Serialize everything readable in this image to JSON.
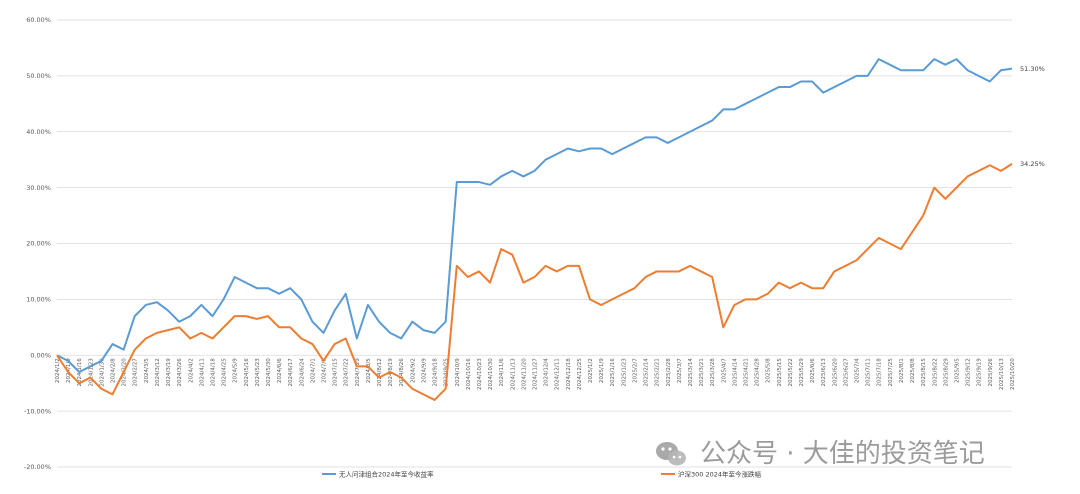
{
  "chart_data": {
    "type": "line",
    "title": "",
    "xlabel": "",
    "ylabel": "",
    "ylim": [
      -0.2,
      0.6
    ],
    "yticks": [
      "-20.00%",
      "-10.00%",
      "0.00%",
      "10.00%",
      "20.00%",
      "30.00%",
      "40.00%",
      "50.00%",
      "60.00%"
    ],
    "grid": true,
    "legend_position": "bottom",
    "x": [
      "2024/1/2",
      "2024/1/9",
      "2024/1/16",
      "2024/1/23",
      "2024/1/30",
      "2024/2/8",
      "2024/2/20",
      "2024/2/27",
      "2024/3/5",
      "2024/3/12",
      "2024/3/19",
      "2024/3/26",
      "2024/4/2",
      "2024/4/11",
      "2024/4/18",
      "2024/4/25",
      "2024/5/9",
      "2024/5/16",
      "2024/5/23",
      "2024/5/30",
      "2024/6/6",
      "2024/6/17",
      "2024/6/24",
      "2024/7/1",
      "2024/7/8",
      "2024/7/15",
      "2024/7/22",
      "2024/7/29",
      "2024/8/5",
      "2024/8/12",
      "2024/8/19",
      "2024/8/26",
      "2024/9/2",
      "2024/9/9",
      "2024/9/18",
      "2024/9/25",
      "2024/10/9",
      "2024/10/16",
      "2024/10/23",
      "2024/10/30",
      "2024/11/6",
      "2024/11/13",
      "2024/11/20",
      "2024/11/27",
      "2024/12/4",
      "2024/12/11",
      "2024/12/18",
      "2024/12/25",
      "2025/1/2",
      "2025/1/9",
      "2025/1/16",
      "2025/1/23",
      "2025/2/7",
      "2025/2/14",
      "2025/2/21",
      "2025/2/28",
      "2025/3/7",
      "2025/3/14",
      "2025/3/21",
      "2025/3/28",
      "2025/4/7",
      "2025/4/14",
      "2025/4/21",
      "2025/4/28",
      "2025/5/8",
      "2025/5/15",
      "2025/5/22",
      "2025/5/29",
      "2025/6/6",
      "2025/6/13",
      "2025/6/20",
      "2025/6/27",
      "2025/7/4",
      "2025/7/11",
      "2025/7/18",
      "2025/7/25",
      "2025/8/1",
      "2025/8/8",
      "2025/8/15",
      "2025/8/22",
      "2025/8/29",
      "2025/9/5",
      "2025/9/12",
      "2025/9/19",
      "2025/9/26",
      "2025/10/13",
      "2025/10/20"
    ],
    "series": [
      {
        "name": "无人问津组合2024年至今收益率",
        "color": "#5b9bd5",
        "end_label": "51.30%",
        "values": [
          0.0,
          -0.01,
          -0.03,
          -0.02,
          -0.01,
          0.02,
          0.01,
          0.07,
          0.09,
          0.095,
          0.08,
          0.06,
          0.07,
          0.09,
          0.07,
          0.1,
          0.14,
          0.13,
          0.12,
          0.12,
          0.11,
          0.12,
          0.1,
          0.06,
          0.04,
          0.08,
          0.11,
          0.03,
          0.09,
          0.06,
          0.04,
          0.03,
          0.06,
          0.045,
          0.04,
          0.06,
          0.31,
          0.31,
          0.31,
          0.305,
          0.32,
          0.33,
          0.32,
          0.33,
          0.35,
          0.36,
          0.37,
          0.365,
          0.37,
          0.37,
          0.36,
          0.37,
          0.38,
          0.39,
          0.39,
          0.38,
          0.39,
          0.4,
          0.41,
          0.42,
          0.44,
          0.44,
          0.45,
          0.46,
          0.47,
          0.48,
          0.48,
          0.49,
          0.49,
          0.47,
          0.48,
          0.49,
          0.5,
          0.5,
          0.53,
          0.52,
          0.51,
          0.51,
          0.51,
          0.53,
          0.52,
          0.53,
          0.51,
          0.5,
          0.49,
          0.51,
          0.513
        ]
      },
      {
        "name": "沪深300 2024年至今涨跌幅",
        "color": "#ed7d31",
        "end_label": "34.25%",
        "values": [
          0.0,
          -0.03,
          -0.05,
          -0.04,
          -0.06,
          -0.07,
          -0.03,
          0.01,
          0.03,
          0.04,
          0.045,
          0.05,
          0.03,
          0.04,
          0.03,
          0.05,
          0.07,
          0.07,
          0.065,
          0.07,
          0.05,
          0.05,
          0.03,
          0.02,
          -0.01,
          0.02,
          0.03,
          -0.02,
          -0.02,
          -0.04,
          -0.03,
          -0.04,
          -0.06,
          -0.07,
          -0.08,
          -0.06,
          0.16,
          0.14,
          0.15,
          0.13,
          0.19,
          0.18,
          0.13,
          0.14,
          0.16,
          0.15,
          0.16,
          0.16,
          0.1,
          0.09,
          0.1,
          0.11,
          0.12,
          0.14,
          0.15,
          0.15,
          0.15,
          0.16,
          0.15,
          0.14,
          0.05,
          0.09,
          0.1,
          0.1,
          0.11,
          0.13,
          0.12,
          0.13,
          0.12,
          0.12,
          0.15,
          0.16,
          0.17,
          0.19,
          0.21,
          0.2,
          0.19,
          0.22,
          0.25,
          0.3,
          0.28,
          0.3,
          0.32,
          0.33,
          0.34,
          0.33,
          0.3425
        ]
      }
    ]
  },
  "watermark": {
    "icon": "wechat-icon",
    "text": "公众号 · 大佳的投资笔记"
  }
}
